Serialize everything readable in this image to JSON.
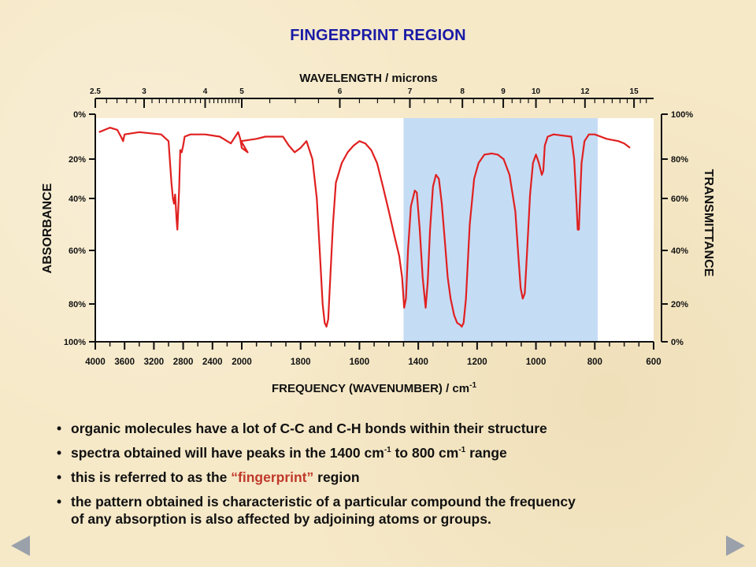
{
  "slide": {
    "title": "FINGERPRINT REGION"
  },
  "chart_data": {
    "type": "line",
    "title": "",
    "top_axis_label": "WAVELENGTH / microns",
    "xlabel": "FREQUENCY (WAVENUMBER) / cm",
    "xlabel_sup": "-1",
    "ylabel_left": "ABSORBANCE",
    "ylabel_right": "TRANSMITTANCE",
    "x_ticks": [
      "4000",
      "3600",
      "3200",
      "2800",
      "2400",
      "2000",
      "1800",
      "1600",
      "1400",
      "1200",
      "1000",
      "800",
      "600"
    ],
    "top_ticks": [
      "2.5",
      "3",
      "4",
      "5",
      "6",
      "7",
      "8",
      "9",
      "10",
      "12",
      "15"
    ],
    "left_ticks": [
      "0%",
      "20%",
      "40%",
      "60%",
      "80%",
      "100%"
    ],
    "right_ticks": [
      "100%",
      "80%",
      "60%",
      "40%",
      "20%",
      "0%"
    ],
    "highlight_region_cm": [
      1450,
      790
    ],
    "highlight_color": "#c5dcf5",
    "line_color": "#e02020",
    "series": [
      {
        "points": [
          [
            3950,
            92
          ],
          [
            3800,
            94
          ],
          [
            3700,
            93
          ],
          [
            3650,
            90
          ],
          [
            3620,
            88
          ],
          [
            3600,
            91
          ],
          [
            3400,
            92
          ],
          [
            3100,
            91
          ],
          [
            3000,
            88
          ],
          [
            2960,
            68
          ],
          [
            2940,
            60
          ],
          [
            2925,
            58
          ],
          [
            2910,
            62
          ],
          [
            2890,
            52
          ],
          [
            2880,
            48
          ],
          [
            2870,
            54
          ],
          [
            2855,
            65
          ],
          [
            2840,
            84
          ],
          [
            2820,
            83
          ],
          [
            2800,
            86
          ],
          [
            2780,
            90
          ],
          [
            2700,
            91
          ],
          [
            2500,
            91
          ],
          [
            2300,
            90
          ],
          [
            2200,
            88
          ],
          [
            2150,
            87
          ],
          [
            2050,
            92
          ],
          [
            2020,
            89
          ],
          [
            2000,
            85
          ],
          [
            1980,
            83
          ],
          [
            2010,
            88
          ],
          [
            1950,
            89
          ],
          [
            1920,
            90
          ],
          [
            1880,
            90
          ],
          [
            1860,
            90
          ],
          [
            1840,
            86
          ],
          [
            1820,
            83
          ],
          [
            1800,
            85
          ],
          [
            1780,
            88
          ],
          [
            1760,
            80
          ],
          [
            1745,
            60
          ],
          [
            1735,
            40
          ],
          [
            1725,
            20
          ],
          [
            1718,
            10
          ],
          [
            1712,
            8
          ],
          [
            1706,
            12
          ],
          [
            1700,
            28
          ],
          [
            1690,
            50
          ],
          [
            1680,
            68
          ],
          [
            1660,
            78
          ],
          [
            1640,
            83
          ],
          [
            1620,
            86
          ],
          [
            1600,
            88
          ],
          [
            1580,
            87
          ],
          [
            1560,
            84
          ],
          [
            1540,
            78
          ],
          [
            1520,
            66
          ],
          [
            1500,
            55
          ],
          [
            1480,
            45
          ],
          [
            1465,
            38
          ],
          [
            1455,
            30
          ],
          [
            1448,
            18
          ],
          [
            1442,
            22
          ],
          [
            1435,
            40
          ],
          [
            1425,
            57
          ],
          [
            1412,
            64
          ],
          [
            1405,
            63
          ],
          [
            1395,
            48
          ],
          [
            1385,
            30
          ],
          [
            1375,
            18
          ],
          [
            1368,
            28
          ],
          [
            1360,
            48
          ],
          [
            1350,
            66
          ],
          [
            1340,
            72
          ],
          [
            1330,
            70
          ],
          [
            1320,
            58
          ],
          [
            1310,
            44
          ],
          [
            1300,
            30
          ],
          [
            1290,
            22
          ],
          [
            1278,
            14
          ],
          [
            1268,
            10
          ],
          [
            1258,
            9
          ],
          [
            1252,
            8
          ],
          [
            1246,
            10
          ],
          [
            1238,
            22
          ],
          [
            1225,
            50
          ],
          [
            1210,
            70
          ],
          [
            1195,
            78
          ],
          [
            1175,
            82
          ],
          [
            1150,
            82.5
          ],
          [
            1130,
            82
          ],
          [
            1110,
            80
          ],
          [
            1090,
            72
          ],
          [
            1070,
            55
          ],
          [
            1060,
            38
          ],
          [
            1052,
            26
          ],
          [
            1045,
            22
          ],
          [
            1038,
            24
          ],
          [
            1030,
            40
          ],
          [
            1020,
            62
          ],
          [
            1010,
            78
          ],
          [
            1000,
            82
          ],
          [
            990,
            78
          ],
          [
            980,
            72
          ],
          [
            975,
            74
          ],
          [
            970,
            86
          ],
          [
            960,
            90
          ],
          [
            940,
            91
          ],
          [
            880,
            90
          ],
          [
            870,
            80
          ],
          [
            862,
            58
          ],
          [
            858,
            48
          ],
          [
            854,
            48
          ],
          [
            850,
            60
          ],
          [
            845,
            78
          ],
          [
            835,
            88
          ],
          [
            820,
            91
          ],
          [
            800,
            91
          ],
          [
            760,
            89
          ],
          [
            720,
            88
          ],
          [
            700,
            87
          ],
          [
            680,
            85
          ]
        ]
      }
    ]
  },
  "bullets": [
    {
      "text": "organic molecules have a lot of C-C and C-H bonds within their structure"
    },
    {
      "pre": "spectra obtained will have peaks in the 1400 cm",
      "sup1": "-1",
      "mid": " to 800 cm",
      "sup2": "-1",
      "post": " range"
    },
    {
      "pre": "this is referred to as the ",
      "highlight": "“fingerprint”",
      "post": " region"
    },
    {
      "text": "the pattern obtained is characteristic of a particular compound the frequency",
      "continuation": "of any absorption is also affected by adjoining atoms or groups."
    }
  ],
  "bullet_symbol": "•",
  "nav": {
    "prev_icon": "triangle-left-icon",
    "next_icon": "triangle-right-icon"
  }
}
